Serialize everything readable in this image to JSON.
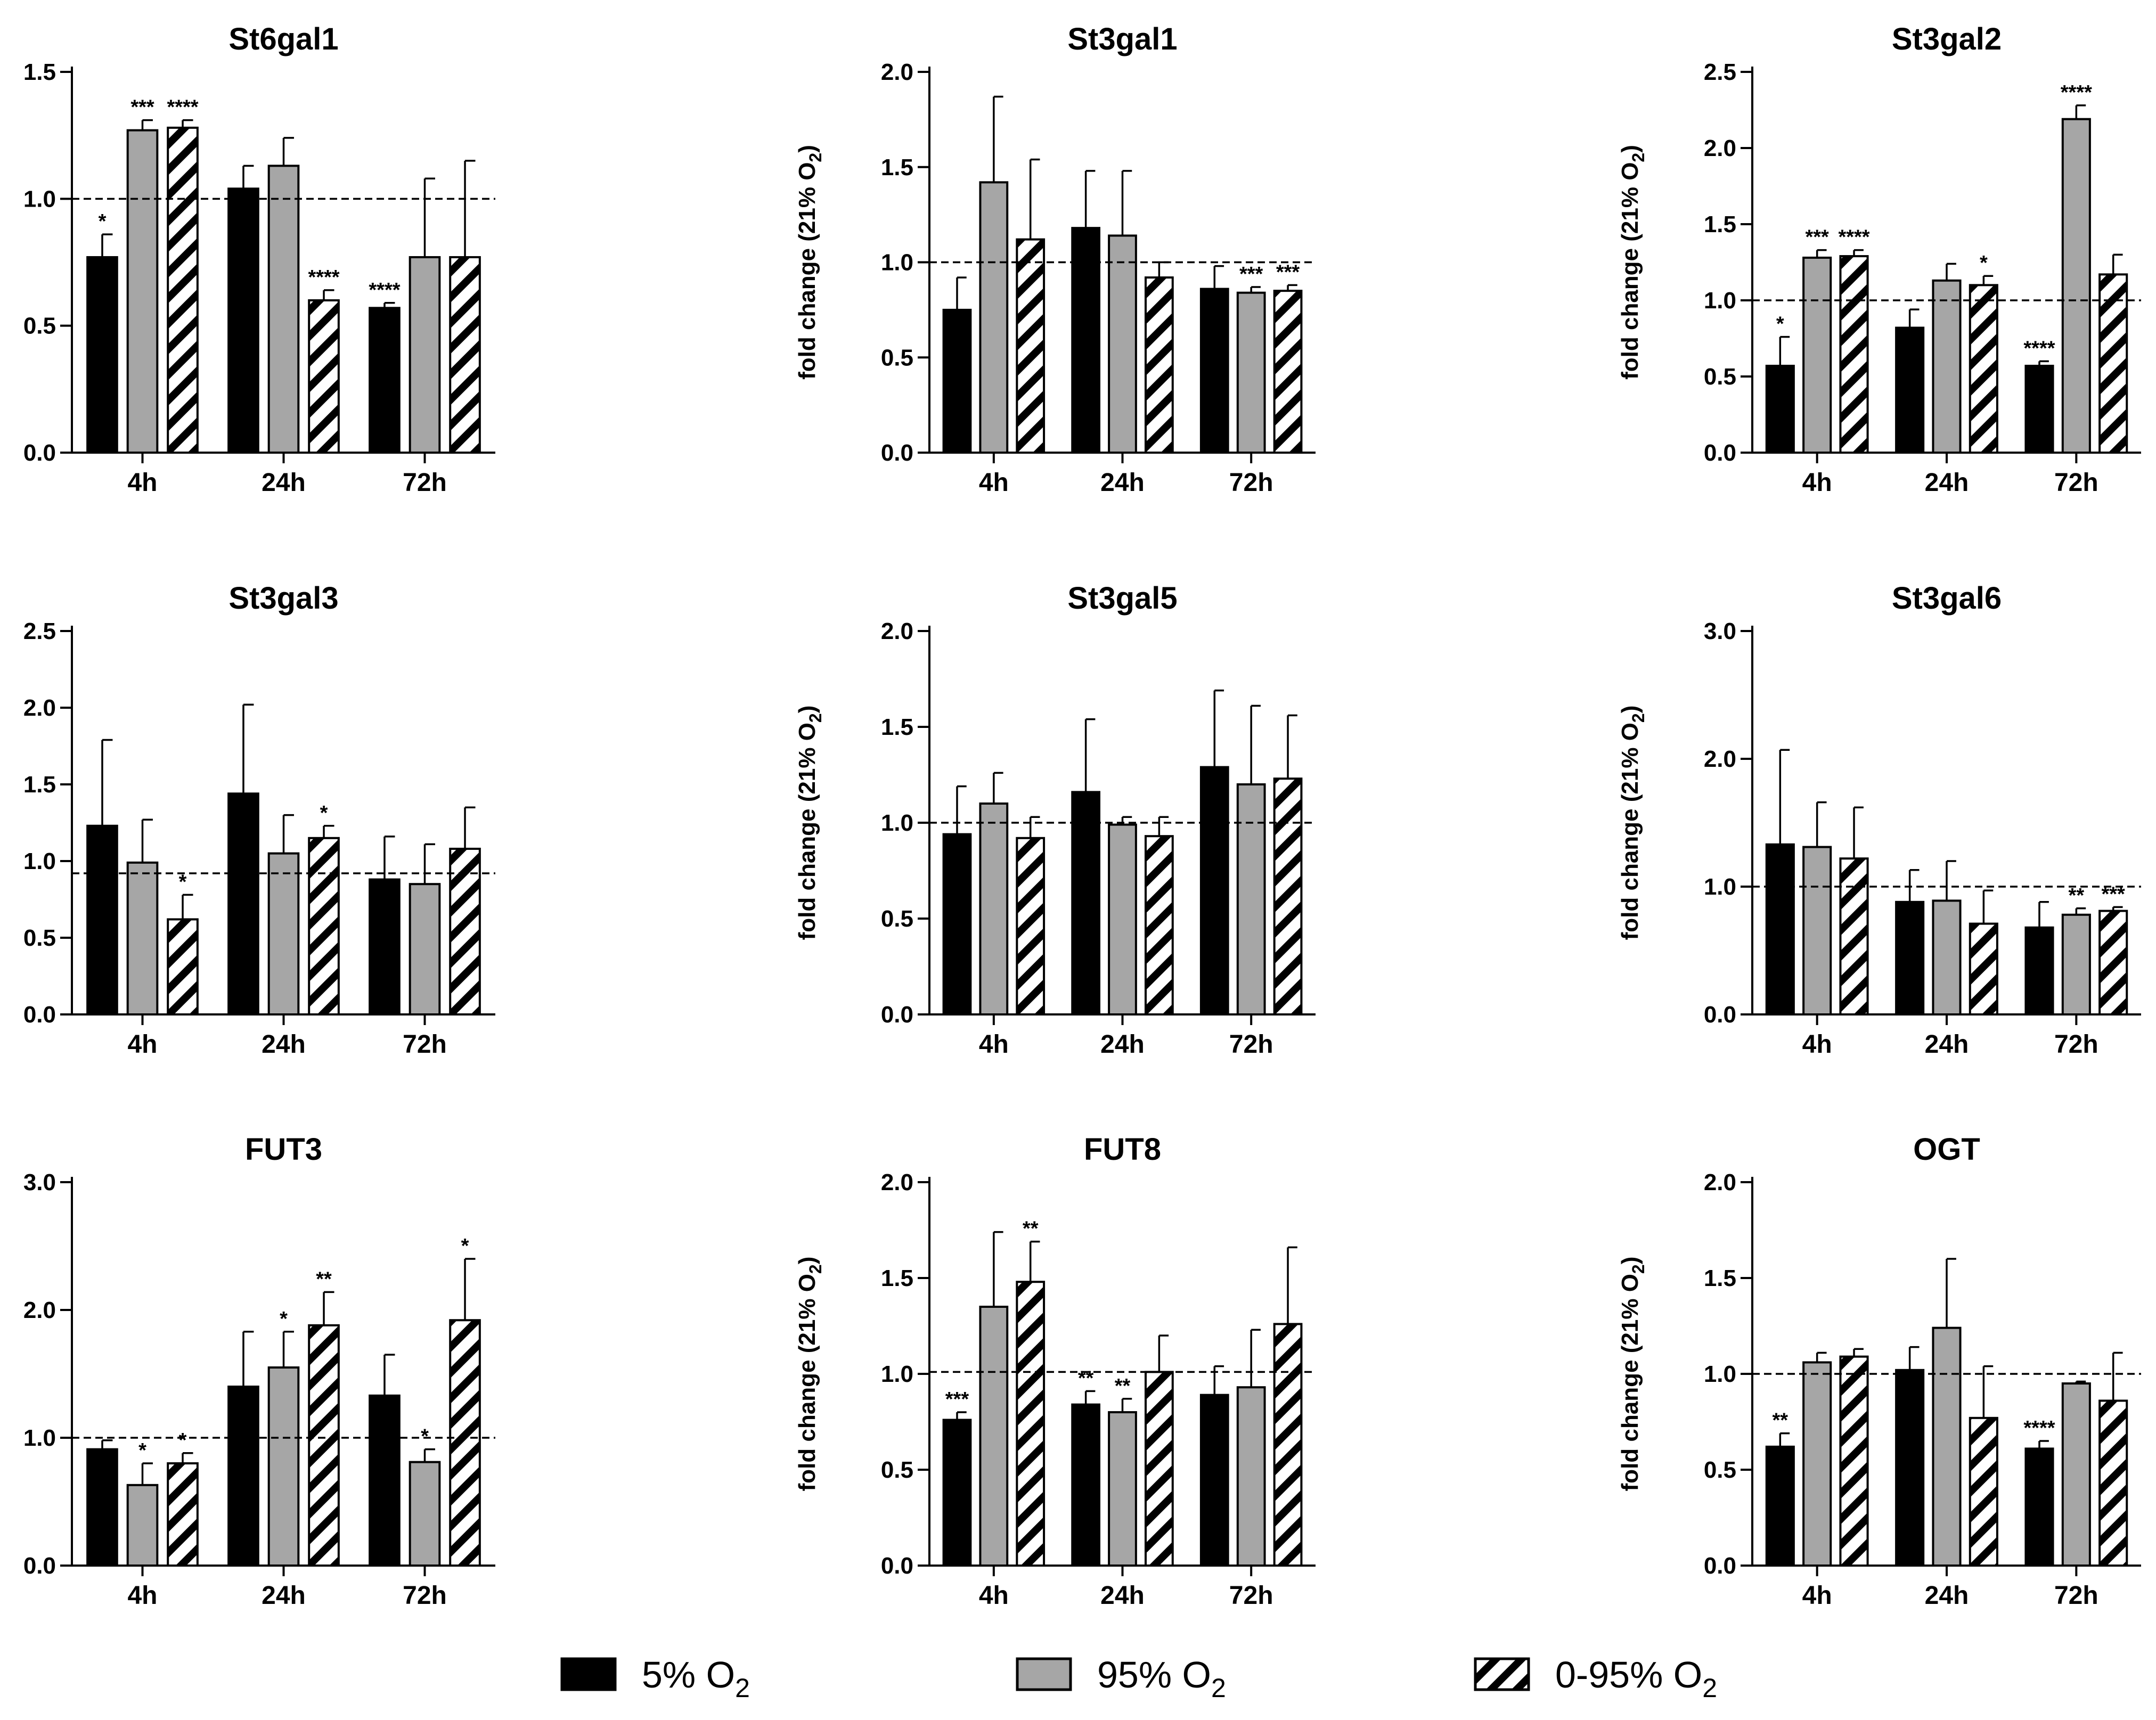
{
  "y_label": {
    "main": "fold change (21% O",
    "sub": "2",
    "tail": ")"
  },
  "legend": [
    {
      "id": "s5",
      "main": "5% O",
      "sub": "2"
    },
    {
      "id": "s95",
      "main": "95% O",
      "sub": "2"
    },
    {
      "id": "s095",
      "main": "0-95% O",
      "sub": "2"
    }
  ],
  "colors": {
    "s5": "#000000",
    "s95": "#a6a6a6",
    "s095": "#ffffff",
    "stroke": "#000000"
  },
  "chart_data": [
    {
      "type": "bar",
      "title": "St6gal1",
      "categories": [
        "4h",
        "24h",
        "72h"
      ],
      "ylim": [
        0,
        1.5
      ],
      "ytick_labels": [
        "0.0",
        "0.5",
        "1.0",
        "1.5"
      ],
      "reference_line": 1.0,
      "series": [
        {
          "name": "5% O2",
          "values": [
            0.77,
            1.04,
            0.57
          ],
          "errors": [
            0.09,
            0.09,
            0.02
          ],
          "sig": [
            "*",
            "",
            "****"
          ]
        },
        {
          "name": "95% O2",
          "values": [
            1.27,
            1.13,
            0.77
          ],
          "errors": [
            0.04,
            0.11,
            0.31
          ],
          "sig": [
            "***",
            "",
            ""
          ]
        },
        {
          "name": "0-95% O2",
          "values": [
            1.28,
            0.6,
            0.77
          ],
          "errors": [
            0.03,
            0.04,
            0.38
          ],
          "sig": [
            "****",
            "****",
            ""
          ]
        }
      ]
    },
    {
      "type": "bar",
      "title": "St3gal1",
      "categories": [
        "4h",
        "24h",
        "72h"
      ],
      "ylim": [
        0,
        2.0
      ],
      "ytick_labels": [
        "0.0",
        "0.5",
        "1.0",
        "1.5",
        "2.0"
      ],
      "reference_line": 1.0,
      "series": [
        {
          "name": "5% O2",
          "values": [
            0.75,
            1.18,
            0.86
          ],
          "errors": [
            0.17,
            0.3,
            0.12
          ],
          "sig": [
            "",
            "",
            ""
          ]
        },
        {
          "name": "95% O2",
          "values": [
            1.42,
            1.14,
            0.84
          ],
          "errors": [
            0.45,
            0.34,
            0.03
          ],
          "sig": [
            "",
            "",
            "***"
          ]
        },
        {
          "name": "0-95% O2",
          "values": [
            1.12,
            0.92,
            0.85
          ],
          "errors": [
            0.42,
            0.08,
            0.03
          ],
          "sig": [
            "",
            "",
            "***"
          ]
        }
      ]
    },
    {
      "type": "bar",
      "title": "St3gal2",
      "categories": [
        "4h",
        "24h",
        "72h"
      ],
      "ylim": [
        0,
        2.5
      ],
      "ytick_labels": [
        "0.0",
        "0.5",
        "1.0",
        "1.5",
        "2.0",
        "2.5"
      ],
      "reference_line": 1.0,
      "series": [
        {
          "name": "5% O2",
          "values": [
            0.57,
            0.82,
            0.57
          ],
          "errors": [
            0.19,
            0.12,
            0.03
          ],
          "sig": [
            "*",
            "",
            "****"
          ]
        },
        {
          "name": "95% O2",
          "values": [
            1.28,
            1.13,
            2.19
          ],
          "errors": [
            0.05,
            0.11,
            0.09
          ],
          "sig": [
            "***",
            "",
            "****"
          ]
        },
        {
          "name": "0-95% O2",
          "values": [
            1.29,
            1.1,
            1.17
          ],
          "errors": [
            0.04,
            0.06,
            0.13
          ],
          "sig": [
            "****",
            "*",
            ""
          ]
        }
      ]
    },
    {
      "type": "bar",
      "title": "St3gal3",
      "categories": [
        "4h",
        "24h",
        "72h"
      ],
      "ylim": [
        0,
        2.5
      ],
      "ytick_labels": [
        "0.0",
        "0.5",
        "1.0",
        "1.5",
        "2.0",
        "2.5"
      ],
      "reference_line": 0.92,
      "series": [
        {
          "name": "5% O2",
          "values": [
            1.23,
            1.44,
            0.88
          ],
          "errors": [
            0.56,
            0.58,
            0.28
          ],
          "sig": [
            "",
            "",
            ""
          ]
        },
        {
          "name": "95% O2",
          "values": [
            0.99,
            1.05,
            0.85
          ],
          "errors": [
            0.28,
            0.25,
            0.26
          ],
          "sig": [
            "",
            "",
            ""
          ]
        },
        {
          "name": "0-95% O2",
          "values": [
            0.62,
            1.15,
            1.08
          ],
          "errors": [
            0.16,
            0.08,
            0.27
          ],
          "sig": [
            "*",
            "*",
            ""
          ]
        }
      ]
    },
    {
      "type": "bar",
      "title": "St3gal5",
      "categories": [
        "4h",
        "24h",
        "72h"
      ],
      "ylim": [
        0,
        2.0
      ],
      "ytick_labels": [
        "0.0",
        "0.5",
        "1.0",
        "1.5",
        "2.0"
      ],
      "reference_line": 1.0,
      "series": [
        {
          "name": "5% O2",
          "values": [
            0.94,
            1.16,
            1.29
          ],
          "errors": [
            0.25,
            0.38,
            0.4
          ],
          "sig": [
            "",
            "",
            ""
          ]
        },
        {
          "name": "95% O2",
          "values": [
            1.1,
            0.99,
            1.2
          ],
          "errors": [
            0.16,
            0.04,
            0.41
          ],
          "sig": [
            "",
            "",
            ""
          ]
        },
        {
          "name": "0-95% O2",
          "values": [
            0.92,
            0.93,
            1.23
          ],
          "errors": [
            0.11,
            0.1,
            0.33
          ],
          "sig": [
            "",
            "",
            ""
          ]
        }
      ]
    },
    {
      "type": "bar",
      "title": "St3gal6",
      "categories": [
        "4h",
        "24h",
        "72h"
      ],
      "ylim": [
        0,
        3.0
      ],
      "ytick_labels": [
        "0.0",
        "1.0",
        "2.0",
        "3.0"
      ],
      "reference_line": 1.0,
      "series": [
        {
          "name": "5% O2",
          "values": [
            1.33,
            0.88,
            0.68
          ],
          "errors": [
            0.74,
            0.25,
            0.2
          ],
          "sig": [
            "",
            "",
            ""
          ]
        },
        {
          "name": "95% O2",
          "values": [
            1.31,
            0.89,
            0.78
          ],
          "errors": [
            0.35,
            0.31,
            0.05
          ],
          "sig": [
            "",
            "",
            "**"
          ]
        },
        {
          "name": "0-95% O2",
          "values": [
            1.22,
            0.71,
            0.81
          ],
          "errors": [
            0.4,
            0.26,
            0.03
          ],
          "sig": [
            "",
            "",
            "***"
          ]
        }
      ]
    },
    {
      "type": "bar",
      "title": "FUT3",
      "categories": [
        "4h",
        "24h",
        "72h"
      ],
      "ylim": [
        0,
        3.0
      ],
      "ytick_labels": [
        "0.0",
        "1.0",
        "2.0",
        "3.0"
      ],
      "reference_line": 1.0,
      "series": [
        {
          "name": "5% O2",
          "values": [
            0.91,
            1.4,
            1.33
          ],
          "errors": [
            0.07,
            0.43,
            0.32
          ],
          "sig": [
            "",
            "",
            ""
          ]
        },
        {
          "name": "95% O2",
          "values": [
            0.63,
            1.55,
            0.81
          ],
          "errors": [
            0.17,
            0.28,
            0.1
          ],
          "sig": [
            "*",
            "*",
            "*"
          ]
        },
        {
          "name": "0-95% O2",
          "values": [
            0.8,
            1.88,
            1.92
          ],
          "errors": [
            0.08,
            0.26,
            0.48
          ],
          "sig": [
            "*",
            "**",
            "*"
          ]
        }
      ]
    },
    {
      "type": "bar",
      "title": "FUT8",
      "categories": [
        "4h",
        "24h",
        "72h"
      ],
      "ylim": [
        0,
        2.0
      ],
      "ytick_labels": [
        "0.0",
        "0.5",
        "1.0",
        "1.5",
        "2.0"
      ],
      "reference_line": 1.01,
      "series": [
        {
          "name": "5% O2",
          "values": [
            0.76,
            0.84,
            0.89
          ],
          "errors": [
            0.04,
            0.07,
            0.15
          ],
          "sig": [
            "***",
            "**",
            ""
          ]
        },
        {
          "name": "95% O2",
          "values": [
            1.35,
            0.8,
            0.93
          ],
          "errors": [
            0.39,
            0.07,
            0.3
          ],
          "sig": [
            "",
            "**",
            ""
          ]
        },
        {
          "name": "0-95% O2",
          "values": [
            1.48,
            1.01,
            1.26
          ],
          "errors": [
            0.21,
            0.19,
            0.4
          ],
          "sig": [
            "**",
            "",
            ""
          ]
        }
      ]
    },
    {
      "type": "bar",
      "title": "OGT",
      "categories": [
        "4h",
        "24h",
        "72h"
      ],
      "ylim": [
        0,
        2.0
      ],
      "ytick_labels": [
        "0.0",
        "0.5",
        "1.0",
        "1.5",
        "2.0"
      ],
      "reference_line": 1.0,
      "series": [
        {
          "name": "5% O2",
          "values": [
            0.62,
            1.02,
            0.61
          ],
          "errors": [
            0.07,
            0.12,
            0.04
          ],
          "sig": [
            "**",
            "",
            "****"
          ]
        },
        {
          "name": "95% O2",
          "values": [
            1.06,
            1.24,
            0.95
          ],
          "errors": [
            0.05,
            0.36,
            0.01
          ],
          "sig": [
            "",
            "",
            ""
          ]
        },
        {
          "name": "0-95% O2",
          "values": [
            1.09,
            0.77,
            0.86
          ],
          "errors": [
            0.04,
            0.27,
            0.25
          ],
          "sig": [
            "",
            "",
            ""
          ]
        }
      ]
    }
  ]
}
